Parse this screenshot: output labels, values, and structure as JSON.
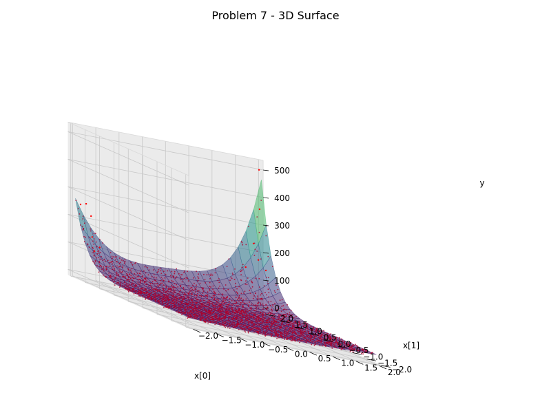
{
  "chart_data": {
    "type": "scatter",
    "title": "Problem 7 - 3D Surface",
    "xlabel": "x[0]",
    "ylabel": "x[1]",
    "zlabel": "y",
    "xlim": [
      -2.0,
      2.0
    ],
    "ylim": [
      -2.0,
      2.0
    ],
    "zlim": [
      0,
      500
    ],
    "x_ticks": [
      "−2.0",
      "−1.5",
      "−1.0",
      "−0.5",
      "0.0",
      "0.5",
      "1.0",
      "1.5",
      "2.0"
    ],
    "y_ticks": [
      "−2.0",
      "−1.5",
      "−1.0",
      "−0.5",
      "0.0",
      "0.5",
      "1.0",
      "1.5",
      "2.0"
    ],
    "z_ticks": [
      "0",
      "100",
      "200",
      "300",
      "400",
      "500"
    ],
    "grid": true,
    "surface": {
      "colormap": "viridis",
      "alpha": 0.5,
      "min_value": 0,
      "max_value": 450,
      "corner_values": {
        "x-2_y-2": 10,
        "x2_y-2": 10,
        "x-2_y2": 250,
        "x2_y2": 450
      }
    },
    "scatter": {
      "color": "#ff0000",
      "high_points": [
        {
          "x": 1.95,
          "y": 2.0,
          "z": 500
        },
        {
          "x": 1.9,
          "y": 1.9,
          "z": 360
        },
        {
          "x": 1.8,
          "y": 1.95,
          "z": 230
        },
        {
          "x": 1.75,
          "y": 1.7,
          "z": 180
        },
        {
          "x": 1.85,
          "y": 1.6,
          "z": 150
        },
        {
          "x": 1.6,
          "y": 1.9,
          "z": 140
        },
        {
          "x": -1.95,
          "y": 1.9,
          "z": 250
        },
        {
          "x": -1.8,
          "y": 1.95,
          "z": 255
        },
        {
          "x": -1.85,
          "y": 1.7,
          "z": 220
        },
        {
          "x": -1.7,
          "y": 1.9,
          "z": 140
        },
        {
          "x": -1.6,
          "y": 1.8,
          "z": 110
        },
        {
          "x": -1.9,
          "y": 1.5,
          "z": 100
        }
      ]
    }
  }
}
